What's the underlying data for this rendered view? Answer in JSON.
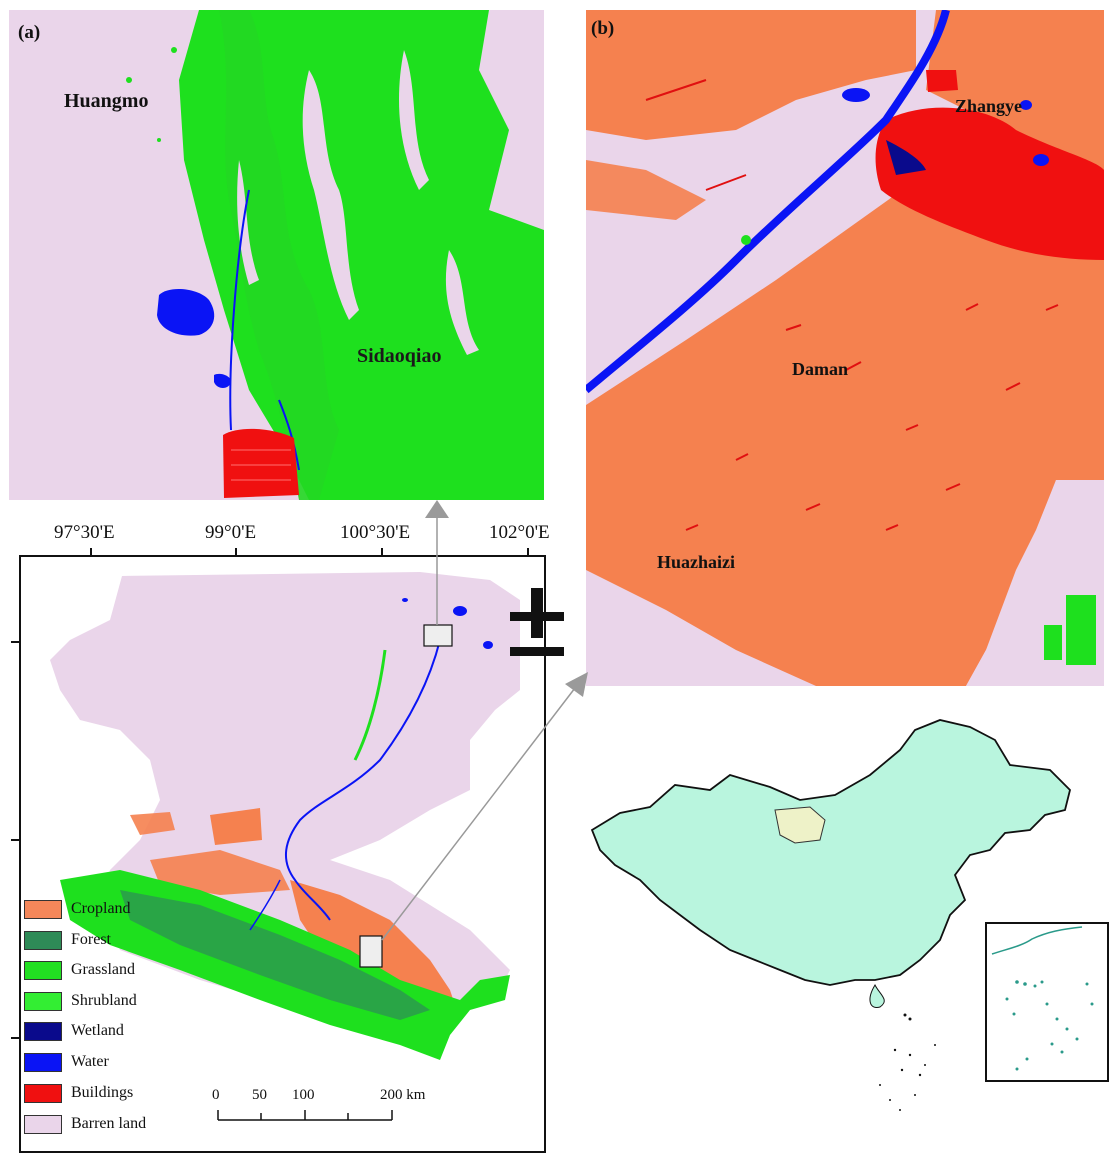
{
  "panels": {
    "a": {
      "label": "(a)",
      "places": [
        "Huangmo",
        "Sidaoqiao"
      ]
    },
    "b": {
      "label": "(b)",
      "places": [
        "Zhangye",
        "Daman",
        "Huazhaizi"
      ]
    }
  },
  "axis": {
    "longitudes": [
      "97°30'E",
      "99°0'E",
      "100°30'E",
      "102°0'E"
    ]
  },
  "legend": {
    "items": [
      {
        "label": "Cropland",
        "color": "#f4875a"
      },
      {
        "label": "Forest",
        "color": "#2e8b57"
      },
      {
        "label": "Grassland",
        "color": "#22e022"
      },
      {
        "label": "Shrubland",
        "color": "#33ee33"
      },
      {
        "label": "Wetland",
        "color": "#0a0a8c"
      },
      {
        "label": "Water",
        "color": "#0a14f5"
      },
      {
        "label": "Buildings",
        "color": "#f01010"
      },
      {
        "label": "Barren land",
        "color": "#ead5ea"
      }
    ]
  },
  "scale_bar": {
    "labels": [
      "0",
      "50",
      "100",
      "200 km"
    ]
  },
  "colors": {
    "barren": "#ead5ea",
    "grass": "#1ee01e",
    "crop": "#f5814f",
    "water": "#0a14f5",
    "buildings": "#f01010",
    "china": "#b9f5de",
    "study_area": "#eef2c8",
    "islands": "#2a9a8a"
  },
  "symbols": {
    "north_arrow": "north-arrow-icon"
  }
}
